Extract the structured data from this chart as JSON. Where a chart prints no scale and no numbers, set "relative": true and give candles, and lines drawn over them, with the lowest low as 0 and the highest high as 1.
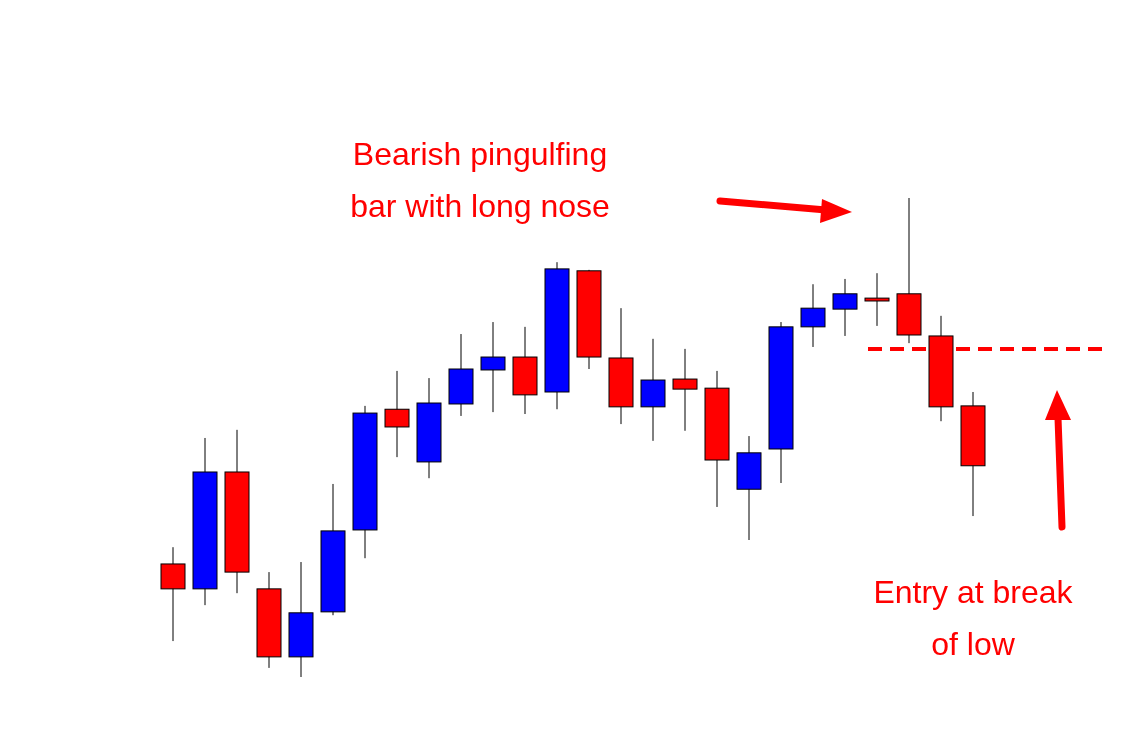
{
  "chart_data": {
    "type": "candlestick",
    "relative": true,
    "categories": [
      null,
      null,
      null,
      null,
      null,
      null,
      null,
      null,
      null,
      null,
      null,
      null,
      null,
      null,
      null,
      null,
      null,
      null,
      null,
      null,
      null,
      null,
      null,
      null,
      null,
      null
    ],
    "ohlc": [
      [
        0.236,
        0.271,
        0.075,
        0.184
      ],
      [
        0.184,
        0.499,
        0.15,
        0.428
      ],
      [
        0.428,
        0.516,
        0.175,
        0.219
      ],
      [
        0.184,
        0.219,
        0.019,
        0.042
      ],
      [
        0.042,
        0.24,
        0,
        0.134
      ],
      [
        0.136,
        0.403,
        0.129,
        0.305
      ],
      [
        0.307,
        0.566,
        0.248,
        0.551
      ],
      [
        0.559,
        0.639,
        0.459,
        0.522
      ],
      [
        0.449,
        0.624,
        0.415,
        0.572
      ],
      [
        0.57,
        0.716,
        0.545,
        0.643
      ],
      [
        0.641,
        0.741,
        0.553,
        0.668
      ],
      [
        0.668,
        0.731,
        0.549,
        0.589
      ],
      [
        0.595,
        0.866,
        0.559,
        0.852
      ],
      [
        0.848,
        0.85,
        0.643,
        0.668
      ],
      [
        0.666,
        0.77,
        0.528,
        0.564
      ],
      [
        0.564,
        0.706,
        0.493,
        0.62
      ],
      [
        0.622,
        0.685,
        0.514,
        0.601
      ],
      [
        0.603,
        0.639,
        0.355,
        0.453
      ],
      [
        0.392,
        0.503,
        0.286,
        0.468
      ],
      [
        0.476,
        0.741,
        0.405,
        0.731
      ],
      [
        0.731,
        0.82,
        0.689,
        0.77
      ],
      [
        0.768,
        0.831,
        0.712,
        0.8
      ],
      [
        0.791,
        0.843,
        0.733,
        0.785
      ],
      [
        0.8,
        1,
        0.697,
        0.714
      ],
      [
        0.712,
        0.754,
        0.534,
        0.564
      ],
      [
        0.566,
        0.595,
        0.336,
        0.441
      ]
    ],
    "colors": [
      "#ff0000",
      "#0000ff",
      "#ff0000",
      "#ff0000",
      "#0000ff",
      "#0000ff",
      "#0000ff",
      "#ff0000",
      "#0000ff",
      "#0000ff",
      "#0000ff",
      "#ff0000",
      "#0000ff",
      "#ff0000",
      "#ff0000",
      "#0000ff",
      "#ff0000",
      "#ff0000",
      "#0000ff",
      "#0000ff",
      "#0000ff",
      "#0000ff",
      "#ff0000",
      "#ff0000",
      "#ff0000",
      "#ff0000"
    ],
    "ref_lines": [
      {
        "axis": "y",
        "value": 0.685,
        "color": "#ff0000",
        "line_style": "dashed"
      }
    ],
    "annotations": [
      "Bearish pingulfing bar with long nose",
      "Entry at break of low"
    ]
  }
}
